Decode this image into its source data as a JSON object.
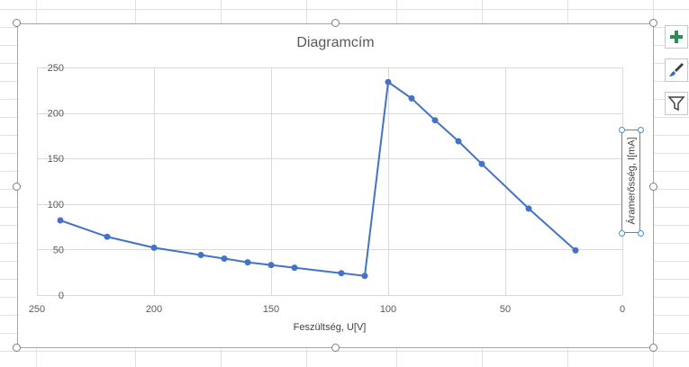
{
  "chart_data": {
    "type": "scatter",
    "title": "Diagramcím",
    "xlabel": "Feszültség, U[V]",
    "ylabel": "Áramerősség, I[mA]",
    "x_reversed": true,
    "xlim": [
      0,
      250
    ],
    "ylim": [
      0,
      250
    ],
    "x_ticks": [
      "250",
      "200",
      "150",
      "100",
      "50",
      "0"
    ],
    "y_ticks": [
      "0",
      "50",
      "100",
      "150",
      "200",
      "250"
    ],
    "grid": true,
    "line_color": "#4472c4",
    "series": [
      {
        "x": [
          240,
          220,
          200,
          180,
          170,
          160,
          150,
          140,
          120,
          110,
          100,
          90,
          80,
          70,
          60,
          40,
          20
        ],
        "y": [
          82,
          64,
          52,
          44,
          40,
          36,
          33,
          30,
          24,
          21,
          234,
          216,
          192,
          169,
          144,
          95,
          49
        ]
      }
    ]
  },
  "toolbar": {
    "add_icon": "plus-icon",
    "style_icon": "brush-icon",
    "filter_icon": "filter-icon"
  }
}
